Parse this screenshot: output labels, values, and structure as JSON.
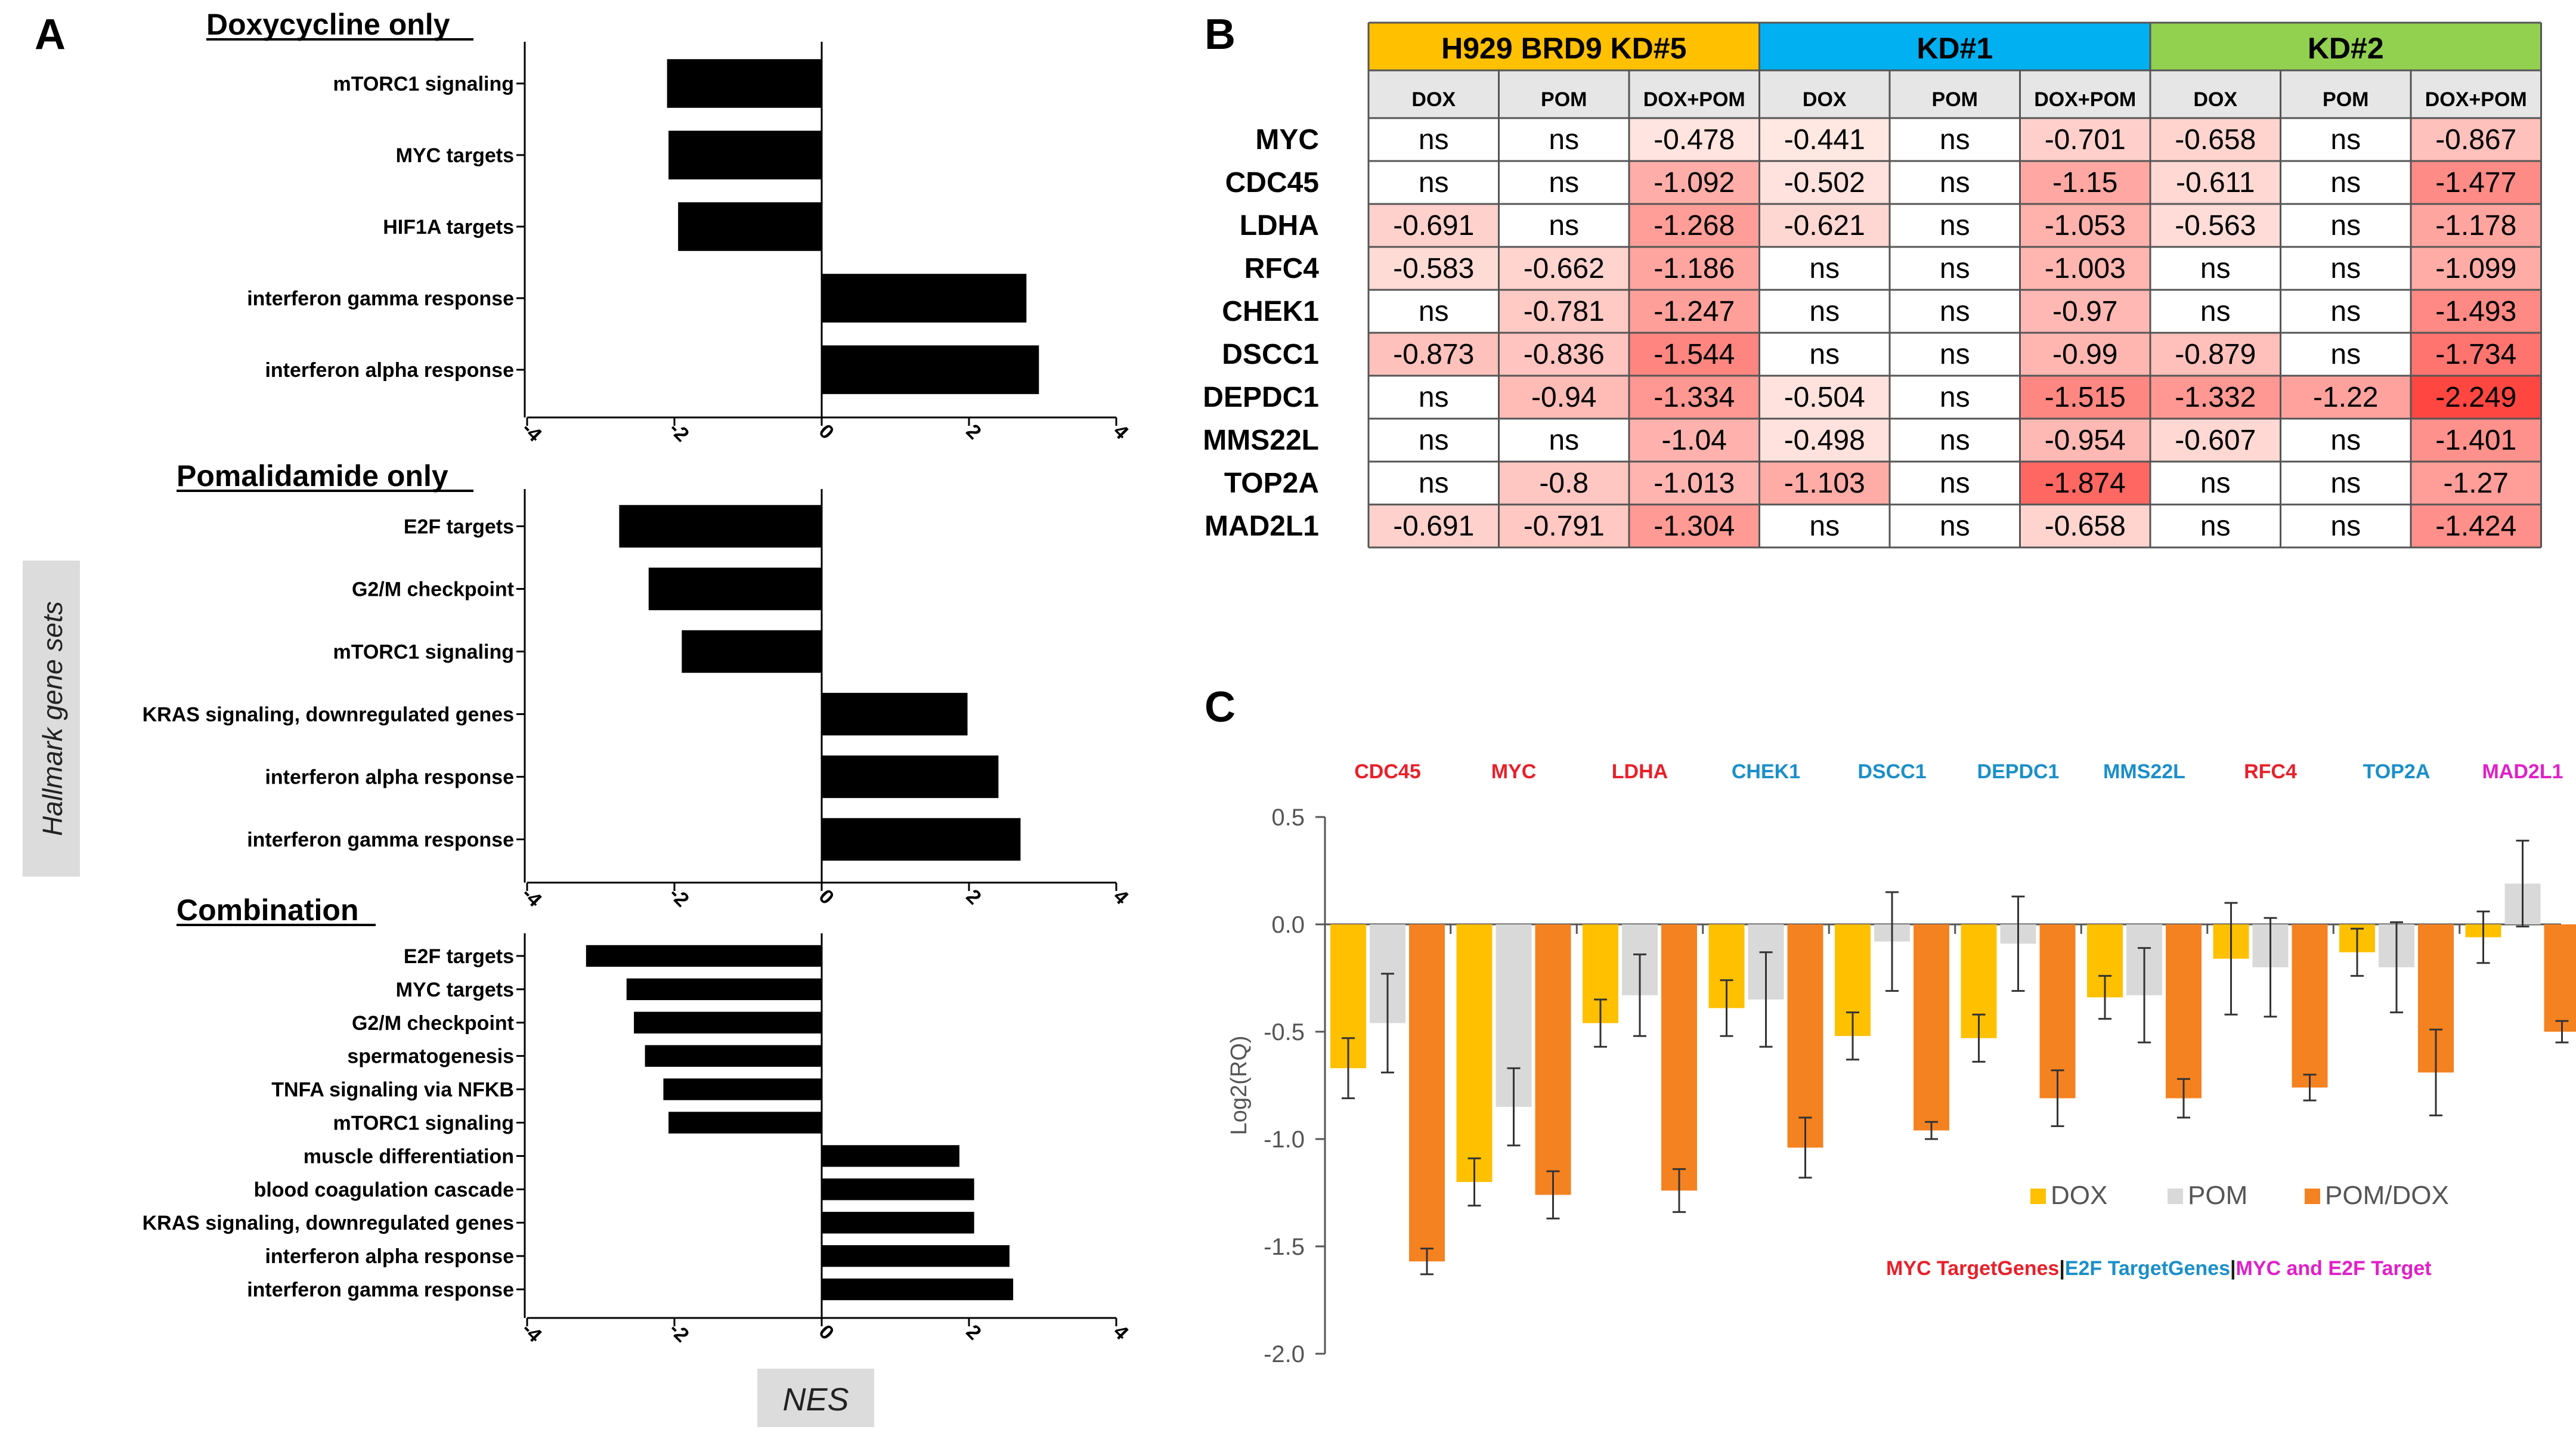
{
  "panel_labels": {
    "a": "A",
    "b": "B",
    "c": "C"
  },
  "panel_a": {
    "y_axis_label": "Hallmark gene sets",
    "x_axis_label": "NES",
    "ticks": [
      -4,
      -2,
      0,
      2,
      4
    ],
    "tick_labels": [
      "-4",
      "-2",
      "0",
      "2",
      "4"
    ]
  },
  "panel_b": {
    "groups": [
      {
        "name": "H929 BRD9 KD#5",
        "color": "#FFC000"
      },
      {
        "name": "KD#1",
        "color": "#00B0F0"
      },
      {
        "name": "KD#2",
        "color": "#92D050"
      }
    ],
    "columns": [
      "DOX",
      "POM",
      "DOX+POM",
      "DOX",
      "POM",
      "DOX+POM",
      "DOX",
      "POM",
      "DOX+POM"
    ],
    "rows": [
      {
        "gene": "MYC",
        "values": [
          "ns",
          "ns",
          "-0.478",
          "-0.441",
          "ns",
          "-0.701",
          "-0.658",
          "ns",
          "-0.867"
        ]
      },
      {
        "gene": "CDC45",
        "values": [
          "ns",
          "ns",
          "-1.092",
          "-0.502",
          "ns",
          "-1.15",
          "-0.611",
          "ns",
          "-1.477"
        ]
      },
      {
        "gene": "LDHA",
        "values": [
          "-0.691",
          "ns",
          "-1.268",
          "-0.621",
          "ns",
          "-1.053",
          "-0.563",
          "ns",
          "-1.178"
        ]
      },
      {
        "gene": "RFC4",
        "values": [
          "-0.583",
          "-0.662",
          "-1.186",
          "ns",
          "ns",
          "-1.003",
          "ns",
          "ns",
          "-1.099"
        ]
      },
      {
        "gene": "CHEK1",
        "values": [
          "ns",
          "-0.781",
          "-1.247",
          "ns",
          "ns",
          "-0.97",
          "ns",
          "ns",
          "-1.493"
        ]
      },
      {
        "gene": "DSCC1",
        "values": [
          "-0.873",
          "-0.836",
          "-1.544",
          "ns",
          "ns",
          "-0.99",
          "-0.879",
          "ns",
          "-1.734"
        ]
      },
      {
        "gene": "DEPDC1",
        "values": [
          "ns",
          "-0.94",
          "-1.334",
          "-0.504",
          "ns",
          "-1.515",
          "-1.332",
          "-1.22",
          "-2.249"
        ]
      },
      {
        "gene": "MMS22L",
        "values": [
          "ns",
          "ns",
          "-1.04",
          "-0.498",
          "ns",
          "-0.954",
          "-0.607",
          "ns",
          "-1.401"
        ]
      },
      {
        "gene": "TOP2A",
        "values": [
          "ns",
          "-0.8",
          "-1.013",
          "-1.103",
          "ns",
          "-1.874",
          "ns",
          "ns",
          "-1.27"
        ]
      },
      {
        "gene": "MAD2L1",
        "values": [
          "-0.691",
          "-0.791",
          "-1.304",
          "ns",
          "ns",
          "-0.658",
          "ns",
          "ns",
          "-1.424"
        ]
      }
    ]
  },
  "panel_c": {
    "legend_items": [
      {
        "name": "DOX",
        "color": "#FFC000"
      },
      {
        "name": "POM",
        "color": "#D9D9D9"
      },
      {
        "name": "POM/DOX",
        "color": "#F58220"
      }
    ],
    "caption_parts": [
      {
        "text": "MYC TargetGenes",
        "color": "#E8202A"
      },
      {
        "text": "|",
        "color": "#1A1A1A"
      },
      {
        "text": "E2F TargetGenes",
        "color": "#1B8FC9"
      },
      {
        "text": "|",
        "color": "#1A1A1A"
      },
      {
        "text": "MYC and E2F Target",
        "color": "#E020C8"
      }
    ]
  },
  "chart_data": [
    {
      "type": "bar",
      "orientation": "horizontal",
      "title": "Doxycycline only",
      "xlabel": "NES",
      "ylabel": "Hallmark gene sets",
      "xlim": [
        -4,
        4
      ],
      "categories": [
        "mTORC1 signaling",
        "MYC targets",
        "HIF1A targets",
        "interferon gamma response",
        "interferon alpha response"
      ],
      "values": [
        -2.1,
        -2.08,
        -1.95,
        2.78,
        2.95
      ]
    },
    {
      "type": "bar",
      "orientation": "horizontal",
      "title": "Pomalidamide only",
      "xlabel": "NES",
      "ylabel": "Hallmark gene sets",
      "xlim": [
        -4,
        4
      ],
      "categories": [
        "E2F targets",
        "G2/M checkpoint",
        "mTORC1 signaling",
        "KRAS signaling, downregulated genes",
        "interferon alpha response",
        "interferon gamma response"
      ],
      "values": [
        -2.75,
        -2.35,
        -1.9,
        1.98,
        2.4,
        2.7
      ]
    },
    {
      "type": "bar",
      "orientation": "horizontal",
      "title": "Combination",
      "xlabel": "NES",
      "ylabel": "Hallmark gene sets",
      "xlim": [
        -4,
        4
      ],
      "categories": [
        "E2F targets",
        "MYC targets",
        "G2/M checkpoint",
        "spermatogenesis",
        "TNFA signaling via NFKB",
        "mTORC1 signaling",
        "muscle differentiation",
        "blood coagulation cascade",
        "KRAS signaling, downregulated genes",
        "interferon alpha response",
        "interferon gamma response"
      ],
      "values": [
        -3.2,
        -2.65,
        -2.55,
        -2.4,
        -2.15,
        -2.08,
        1.87,
        2.07,
        2.07,
        2.55,
        2.6
      ]
    },
    {
      "type": "bar",
      "title": "",
      "xlabel": "",
      "ylabel": "Log2(RQ)",
      "ylim": [
        -2.0,
        0.5
      ],
      "yticks": [
        0.5,
        0.0,
        -0.5,
        -1.0,
        -1.5,
        -2.0
      ],
      "ytick_labels": [
        "0.5",
        "0.0",
        "-0.5",
        "-1.0",
        "-1.5",
        "-2.0"
      ],
      "categories": [
        "CDC45",
        "MYC",
        "LDHA",
        "CHEK1",
        "DSCC1",
        "DEPDC1",
        "MMS22L",
        "RFC4",
        "TOP2A",
        "MAD2L1"
      ],
      "category_colors": [
        "#E8202A",
        "#E8202A",
        "#E8202A",
        "#1B8FC9",
        "#1B8FC9",
        "#1B8FC9",
        "#1B8FC9",
        "#E8202A",
        "#1B8FC9",
        "#E020C8"
      ],
      "series": [
        {
          "name": "DOX",
          "values": [
            -0.67,
            -1.2,
            -0.46,
            -0.39,
            -0.52,
            -0.53,
            -0.34,
            -0.16,
            -0.13,
            -0.06
          ],
          "errors": [
            0.14,
            0.11,
            0.11,
            0.13,
            0.11,
            0.11,
            0.1,
            0.26,
            0.11,
            0.12
          ]
        },
        {
          "name": "POM",
          "values": [
            -0.46,
            -0.85,
            -0.33,
            -0.35,
            -0.08,
            -0.09,
            -0.33,
            -0.2,
            -0.2,
            0.19
          ],
          "errors": [
            0.23,
            0.18,
            0.19,
            0.22,
            0.23,
            0.22,
            0.22,
            0.23,
            0.21,
            0.2
          ]
        },
        {
          "name": "POM/DOX",
          "values": [
            -1.57,
            -1.26,
            -1.24,
            -1.04,
            -0.96,
            -0.81,
            -0.81,
            -0.76,
            -0.69,
            -0.5
          ],
          "errors": [
            0.06,
            0.11,
            0.1,
            0.14,
            0.04,
            0.13,
            0.09,
            0.06,
            0.2,
            0.05
          ]
        }
      ]
    }
  ]
}
